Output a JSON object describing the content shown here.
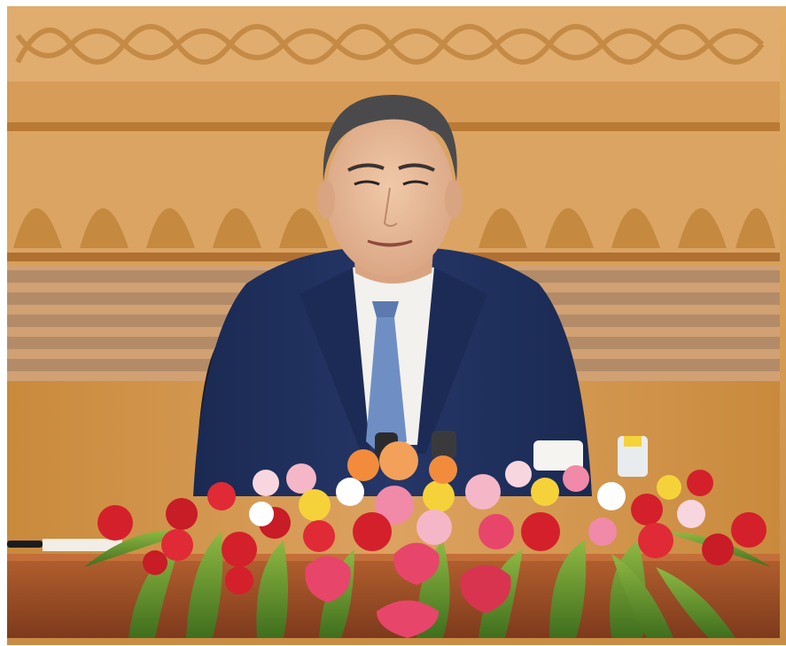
{
  "photo": {
    "scene": "speaker-at-table-with-floral-arrangement",
    "colors": {
      "wall_wood": "#d9a35a",
      "wall_wood_dark": "#b97a35",
      "carving": "#e6b878",
      "suit_navy": "#1f2f5c",
      "shirt_white": "#f3f1ee",
      "tie_blue": "#6f8fc4",
      "skin": "#e9bf9c",
      "hair": "#4a4a4d",
      "table_wood": "#a6512a",
      "flower_red": "#d4202b",
      "flower_pink": "#f08aa8",
      "flower_yellow": "#f5d23a",
      "leaf_green": "#6a9a2c",
      "border": "#ffffff"
    }
  }
}
